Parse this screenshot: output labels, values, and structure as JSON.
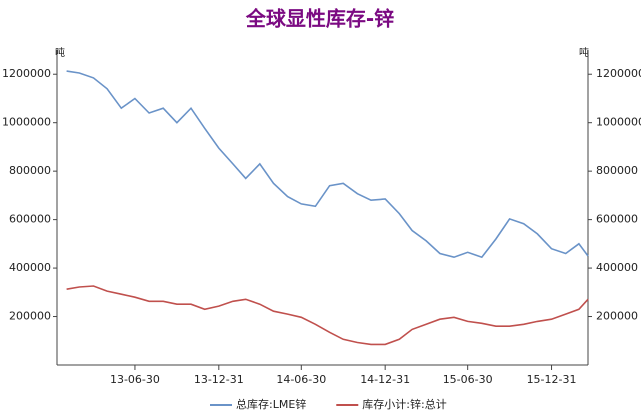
{
  "chart_data": {
    "type": "line",
    "title": "全球显性库存-锌",
    "ylabel": "吨",
    "y2label": "吨",
    "x": [
      "13-01-31",
      "13-02-28",
      "13-03-31",
      "13-04-30",
      "13-05-31",
      "13-06-30",
      "13-07-31",
      "13-08-31",
      "13-09-30",
      "13-10-31",
      "13-11-30",
      "13-12-31",
      "14-01-31",
      "14-02-28",
      "14-03-31",
      "14-04-30",
      "14-05-31",
      "14-06-30",
      "14-07-31",
      "14-08-31",
      "14-09-30",
      "14-10-31",
      "14-11-30",
      "14-12-31",
      "15-01-31",
      "15-02-28",
      "15-03-31",
      "15-04-30",
      "15-05-31",
      "15-06-30",
      "15-07-31",
      "15-08-31",
      "15-09-30",
      "15-10-31",
      "15-11-30",
      "15-12-31",
      "16-01-31",
      "16-02-29",
      "16-03-20"
    ],
    "xlim": [
      "13-01-10",
      "16-03-20"
    ],
    "xticks": [
      "13-06-30",
      "13-12-31",
      "14-06-30",
      "14-12-31",
      "15-06-30",
      "15-12-31"
    ],
    "ylim": [
      0,
      1300000
    ],
    "yticks": [
      200000,
      400000,
      600000,
      800000,
      1000000,
      1200000
    ],
    "y2lim": [
      0,
      1300000
    ],
    "y2ticks": [
      200000,
      400000,
      600000,
      800000,
      1000000,
      1200000
    ],
    "legend": "bottom",
    "series": [
      {
        "name": "总库存:LME锌",
        "color": "#6a93c8",
        "values": [
          1213000,
          1205000,
          1185000,
          1140000,
          1060000,
          1100000,
          1040000,
          1060000,
          1000000,
          1060000,
          977000,
          895000,
          830000,
          770000,
          830000,
          750000,
          695000,
          665000,
          655000,
          740000,
          750000,
          707000,
          680000,
          685000,
          625000,
          555000,
          512000,
          460000,
          445000,
          465000,
          445000,
          520000,
          603000,
          583000,
          541000,
          480000,
          460000,
          500000,
          450000
        ]
      },
      {
        "name": "库存小计:锌:总计",
        "color": "#c0504d",
        "values": [
          313000,
          322000,
          326000,
          305000,
          292000,
          280000,
          263000,
          263000,
          251000,
          251000,
          230000,
          243000,
          263000,
          271000,
          251000,
          222000,
          210000,
          197000,
          168000,
          135000,
          106000,
          93000,
          85000,
          85000,
          106000,
          147000,
          168000,
          189000,
          197000,
          180000,
          172000,
          160000,
          160000,
          168000,
          180000,
          189000,
          210000,
          230000,
          271000
        ]
      }
    ]
  }
}
